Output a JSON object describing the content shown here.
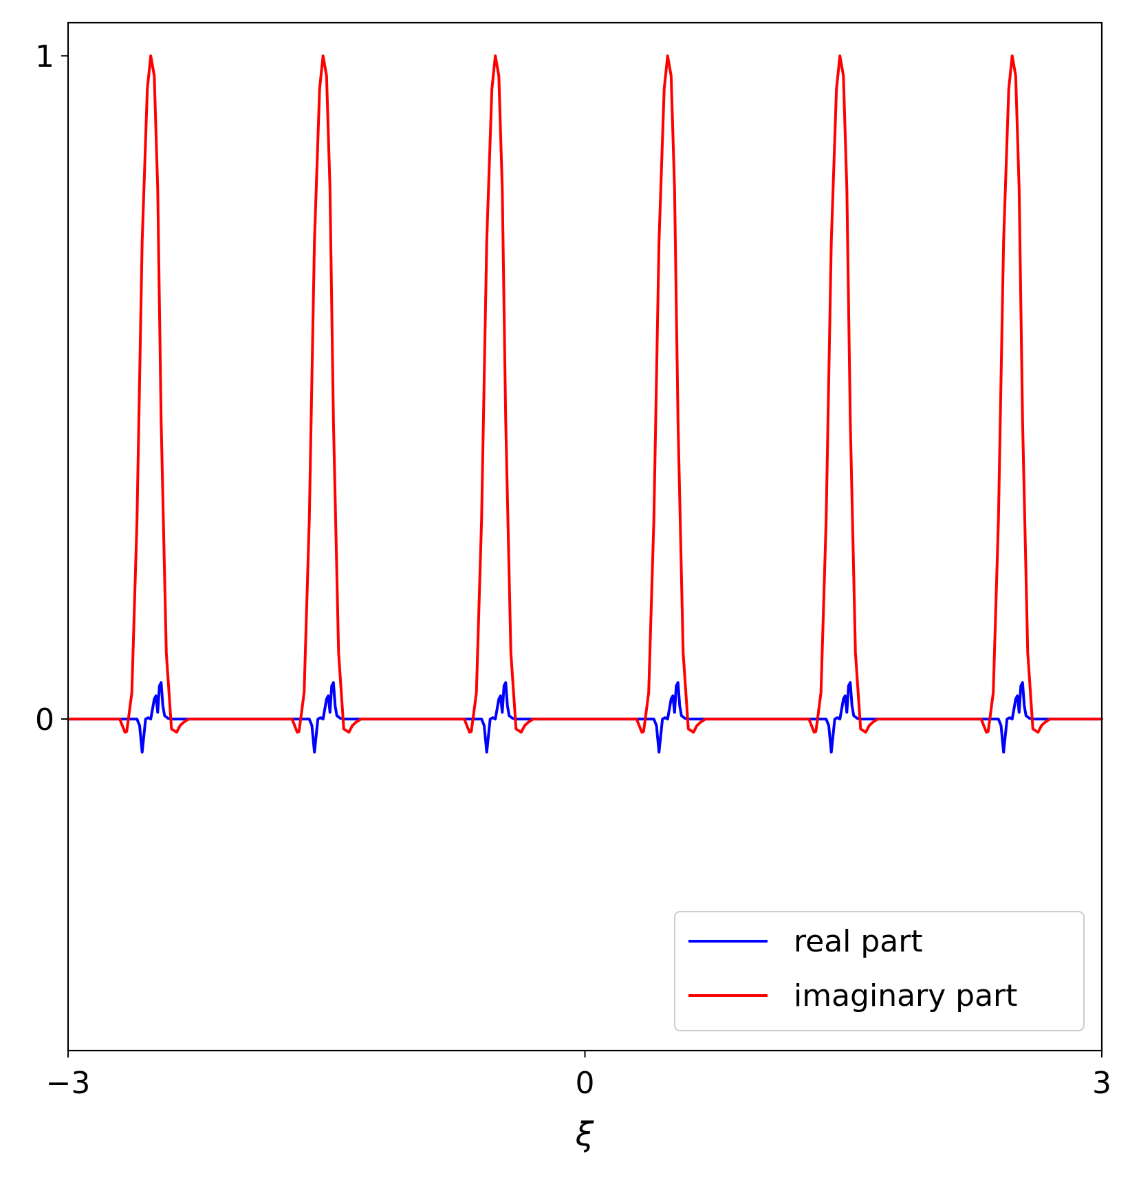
{
  "chart_data": {
    "type": "line",
    "title": "",
    "xlabel": "ξ",
    "ylabel": "",
    "xlim": [
      -3,
      3
    ],
    "ylim": [
      -0.5,
      1.05
    ],
    "xticks": [
      {
        "value": -3,
        "label": "−3"
      },
      {
        "value": 0,
        "label": "0"
      },
      {
        "value": 3,
        "label": "3"
      }
    ],
    "yticks": [
      {
        "value": 0,
        "label": "0"
      },
      {
        "value": 1,
        "label": "1"
      }
    ],
    "grid": false,
    "legend_position": "lower-right",
    "period": 1,
    "peak_centers": [
      -2.5,
      -1.5,
      -0.5,
      0.5,
      1.5,
      2.5
    ],
    "series": [
      {
        "name": "real part",
        "color": "#0000ff",
        "points_per_period_x_offset": [
          -0.1,
          -0.085,
          -0.07,
          -0.05,
          -0.035,
          -0.02,
          0,
          0.01,
          0.02,
          0.03,
          0.04,
          0.05,
          0.06,
          0.08,
          0.1
        ],
        "points_per_period_y": [
          0,
          -0.01,
          -0.05,
          0,
          0.002,
          0,
          0.03,
          0.035,
          0.01,
          0.05,
          0.055,
          0.02,
          0.005,
          0.001,
          0
        ]
      },
      {
        "name": "imaginary part",
        "color": "#ff0000",
        "points_per_period_x_offset": [
          -0.2,
          -0.17,
          -0.16,
          -0.15,
          -0.13,
          -0.1,
          -0.07,
          -0.04,
          -0.02,
          0,
          0.02,
          0.04,
          0.07,
          0.1,
          0.13,
          0.15,
          0.17,
          0.2
        ],
        "points_per_period_y": [
          0,
          -0.02,
          -0.019,
          0.0,
          0.04,
          0.3,
          0.72,
          0.95,
          1.0,
          0.97,
          0.8,
          0.45,
          0.1,
          -0.015,
          -0.02,
          -0.01,
          -0.005,
          0
        ]
      }
    ]
  }
}
